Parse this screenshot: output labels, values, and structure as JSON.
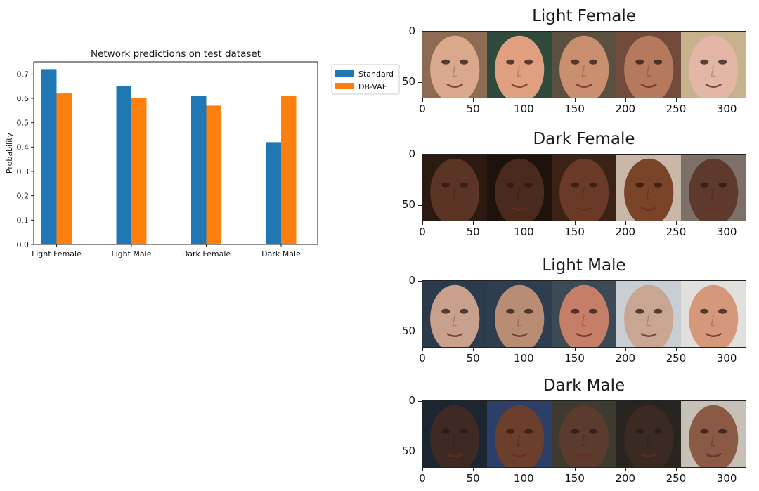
{
  "chart_data": [
    {
      "type": "bar",
      "title": "Network predictions on test dataset",
      "xlabel": "",
      "ylabel": "Probability",
      "categories": [
        "Light Female",
        "Light Male",
        "Dark Female",
        "Dark Male"
      ],
      "series": [
        {
          "name": "Standard",
          "values": [
            0.72,
            0.65,
            0.61,
            0.42
          ],
          "color": "#1f77b4"
        },
        {
          "name": "DB-VAE",
          "values": [
            0.62,
            0.6,
            0.57,
            0.61
          ],
          "color": "#ff7f0e"
        }
      ],
      "ylim": [
        0,
        0.75
      ],
      "yticks": [
        "0.0",
        "0.1",
        "0.2",
        "0.3",
        "0.4",
        "0.5",
        "0.6",
        "0.7"
      ],
      "grid": false,
      "legend": "outside-right"
    },
    {
      "type": "image-strip",
      "panels": [
        {
          "title": "Light Female",
          "skin": [
            "#d9a88d",
            "#e0a07f",
            "#c98f6e",
            "#b57a5e",
            "#e3b6a5"
          ],
          "bg": [
            "#8d6b52",
            "#2f4a3a",
            "#5a5040",
            "#704a3a",
            "#c7b28e"
          ]
        },
        {
          "title": "Dark Female",
          "skin": [
            "#5a3525",
            "#4a2a1d",
            "#6b3a26",
            "#7a4429",
            "#5d3a2c"
          ],
          "bg": [
            "#2b1a12",
            "#1e120c",
            "#3a2316",
            "#c9b8a8",
            "#7d7068"
          ]
        },
        {
          "title": "Light Male",
          "skin": [
            "#c8a08c",
            "#b98d74",
            "#c57e68",
            "#c9a691",
            "#d6987a"
          ],
          "bg": [
            "#2c3b4c",
            "#2e3e50",
            "#3c4a55",
            "#c8ced4",
            "#e2e0dc"
          ]
        },
        {
          "title": "Dark Male",
          "skin": [
            "#3e2a22",
            "#6b3f2c",
            "#5a3b2d",
            "#3b2a22",
            "#8a5a44"
          ],
          "bg": [
            "#1c2630",
            "#2b3f68",
            "#3e3a30",
            "#282420",
            "#c6c0b6"
          ]
        }
      ],
      "x_ticks": [
        "0",
        "50",
        "100",
        "150",
        "200",
        "250",
        "300"
      ],
      "y_ticks": [
        "0",
        "50"
      ]
    }
  ]
}
